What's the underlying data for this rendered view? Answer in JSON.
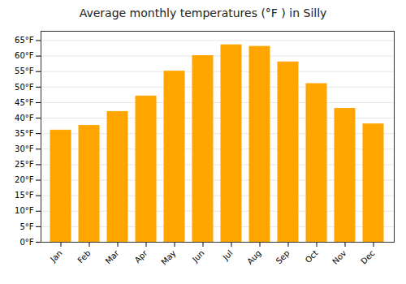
{
  "chart_data": {
    "type": "bar",
    "title": "Average monthly temperatures (°F ) in Silly",
    "categories": [
      "Jan",
      "Feb",
      "Mar",
      "Apr",
      "May",
      "Jun",
      "Jul",
      "Aug",
      "Sep",
      "Oct",
      "Nov",
      "Dec"
    ],
    "values": [
      36,
      37.5,
      42,
      47,
      55,
      60,
      63.5,
      63,
      58,
      51,
      43,
      38
    ],
    "color": "#FFA500",
    "ylim": [
      0,
      68
    ],
    "yticks": [
      {
        "value": 0,
        "label": "0°F"
      },
      {
        "value": 5,
        "label": "5°F"
      },
      {
        "value": 10,
        "label": "10°F"
      },
      {
        "value": 15,
        "label": "15°F"
      },
      {
        "value": 20,
        "label": "20°F"
      },
      {
        "value": 25,
        "label": "25°F"
      },
      {
        "value": 30,
        "label": "30°F"
      },
      {
        "value": 35,
        "label": "35°F"
      },
      {
        "value": 40,
        "label": "40°F"
      },
      {
        "value": 45,
        "label": "45°F"
      },
      {
        "value": 50,
        "label": "50°F"
      },
      {
        "value": 55,
        "label": "55°F"
      },
      {
        "value": 60,
        "label": "60°F"
      },
      {
        "value": 65,
        "label": "65°F"
      }
    ],
    "grid": true
  }
}
